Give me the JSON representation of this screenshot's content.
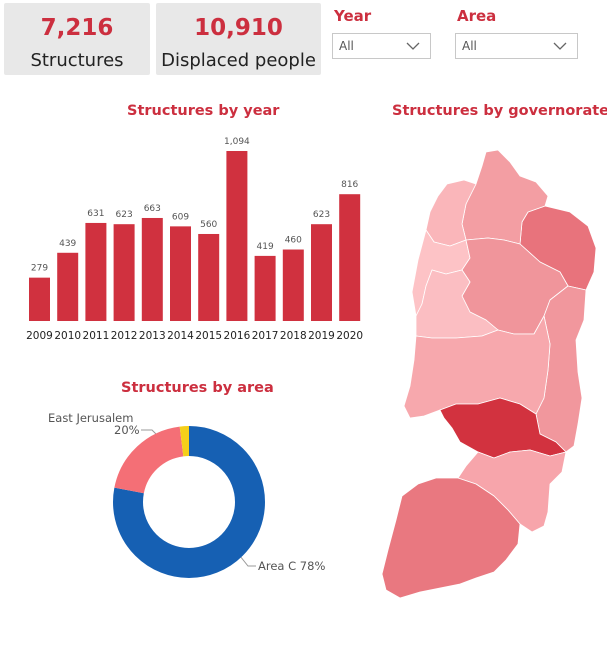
{
  "kpis": {
    "structures": {
      "value": "7,216",
      "label": "Structures"
    },
    "displaced": {
      "value": "10,910",
      "label": "Displaced people"
    }
  },
  "slicers": {
    "year": {
      "title": "Year",
      "value": "All"
    },
    "area": {
      "title": "Area",
      "value": "All"
    }
  },
  "colors": {
    "accent": "#cc2f3f",
    "bar": "#d0313f",
    "area_c": "#1660b3",
    "east_jerusalem": "#f46f76",
    "other": "#f5cf1a"
  },
  "chart_data": [
    {
      "type": "bar",
      "title": "Structures by year",
      "categories": [
        "2009",
        "2010",
        "2011",
        "2012",
        "2013",
        "2014",
        "2015",
        "2016",
        "2017",
        "2018",
        "2019",
        "2020"
      ],
      "values": [
        279,
        439,
        631,
        623,
        663,
        609,
        560,
        1094,
        419,
        460,
        623,
        816
      ],
      "data_labels": [
        "279",
        "439",
        "631",
        "623",
        "663",
        "609",
        "560",
        "1,094",
        "419",
        "460",
        "623",
        "816"
      ],
      "ylim": [
        0,
        1094
      ],
      "grid": false
    },
    {
      "type": "pie",
      "style": "donut",
      "title": "Structures by area",
      "slices": [
        {
          "name": "Area C",
          "value": 78,
          "label": "Area C 78%"
        },
        {
          "name": "East Jerusalem",
          "value": 20,
          "label_name": "East Jerusalem",
          "label_pct": "20%"
        },
        {
          "name": "",
          "value": 2
        }
      ]
    },
    {
      "type": "heatmap",
      "subtype": "choropleth-map",
      "title": "Structures by governorate",
      "regions": [
        {
          "id": "jenin",
          "shade": "#e8737c"
        },
        {
          "id": "tubas",
          "shade": "#f39ea3"
        },
        {
          "id": "nablus",
          "shade": "#f0959b"
        },
        {
          "id": "tulkarm",
          "shade": "#fab6ba"
        },
        {
          "id": "qalqilya",
          "shade": "#fdc3c6"
        },
        {
          "id": "salfit",
          "shade": "#fbbec2"
        },
        {
          "id": "jericho",
          "shade": "#f1979d"
        },
        {
          "id": "ramallah",
          "shade": "#f7a8ad"
        },
        {
          "id": "jerusalem",
          "shade": "#d2323f"
        },
        {
          "id": "bethlehem",
          "shade": "#f7a5ab"
        },
        {
          "id": "hebron",
          "shade": "#e97880"
        }
      ]
    }
  ]
}
